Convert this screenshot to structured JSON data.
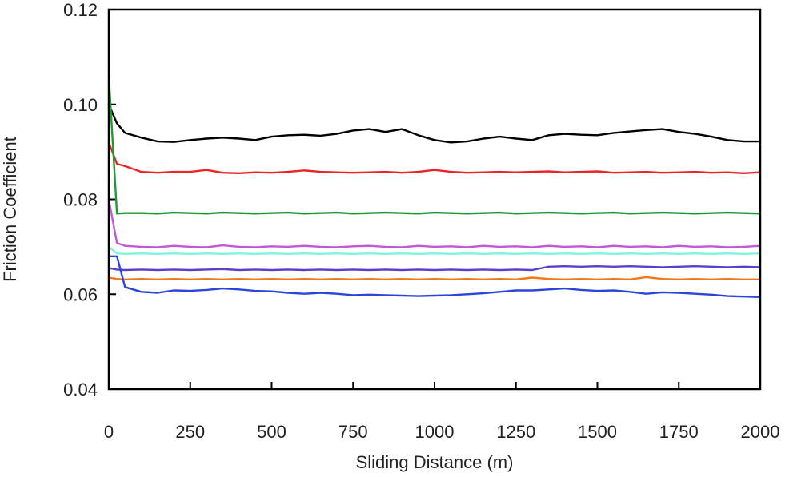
{
  "chart_data": {
    "type": "line",
    "title": "",
    "xlabel": "Sliding Distance (m)",
    "ylabel": "Friction Coefficient",
    "xlim": [
      0,
      2000
    ],
    "ylim": [
      0.04,
      0.12
    ],
    "x_ticks": [
      "0",
      "250",
      "500",
      "750",
      "1000",
      "1250",
      "1500",
      "1750",
      "2000"
    ],
    "y_ticks": [
      "0.04",
      "0.06",
      "0.08",
      "0.10",
      "0.12"
    ],
    "grid": false,
    "legend": "none",
    "x": [
      0,
      25,
      50,
      100,
      150,
      200,
      250,
      300,
      350,
      400,
      450,
      500,
      550,
      600,
      650,
      700,
      750,
      800,
      850,
      900,
      950,
      1000,
      1050,
      1100,
      1150,
      1200,
      1250,
      1300,
      1350,
      1400,
      1450,
      1500,
      1550,
      1600,
      1650,
      1700,
      1750,
      1800,
      1850,
      1900,
      1950,
      2000
    ],
    "series": [
      {
        "color": "#000000",
        "values": [
          0.1,
          0.096,
          0.094,
          0.093,
          0.0922,
          0.0921,
          0.0925,
          0.0928,
          0.093,
          0.0928,
          0.0925,
          0.0932,
          0.0935,
          0.0936,
          0.0934,
          0.0938,
          0.0945,
          0.0948,
          0.0942,
          0.0948,
          0.0935,
          0.0925,
          0.092,
          0.0922,
          0.0928,
          0.0932,
          0.0928,
          0.0925,
          0.0935,
          0.0938,
          0.0936,
          0.0935,
          0.094,
          0.0943,
          0.0946,
          0.0948,
          0.0942,
          0.0938,
          0.0932,
          0.0925,
          0.0922,
          0.0922
        ]
      },
      {
        "color": "#e8262a",
        "values": [
          0.092,
          0.0875,
          0.087,
          0.0858,
          0.0856,
          0.0858,
          0.0858,
          0.0862,
          0.0856,
          0.0855,
          0.0857,
          0.0856,
          0.0858,
          0.0861,
          0.0858,
          0.0857,
          0.0856,
          0.0857,
          0.0858,
          0.0856,
          0.0858,
          0.0862,
          0.0858,
          0.0856,
          0.0857,
          0.0858,
          0.0857,
          0.0858,
          0.0859,
          0.0857,
          0.0858,
          0.0859,
          0.0856,
          0.0857,
          0.0858,
          0.0856,
          0.0857,
          0.0858,
          0.0856,
          0.0857,
          0.0855,
          0.0857
        ]
      },
      {
        "color": "#1f9a33",
        "values": [
          0.106,
          0.077,
          0.0771,
          0.0771,
          0.077,
          0.0772,
          0.0771,
          0.077,
          0.0772,
          0.0771,
          0.077,
          0.0771,
          0.0772,
          0.077,
          0.0771,
          0.0772,
          0.077,
          0.0771,
          0.0772,
          0.0771,
          0.077,
          0.0772,
          0.0771,
          0.077,
          0.0771,
          0.0772,
          0.077,
          0.0771,
          0.0772,
          0.0771,
          0.077,
          0.0771,
          0.0772,
          0.077,
          0.0771,
          0.0772,
          0.0771,
          0.077,
          0.0771,
          0.0772,
          0.0771,
          0.077
        ]
      },
      {
        "color": "#c058d8",
        "values": [
          0.08,
          0.0708,
          0.0702,
          0.07,
          0.0699,
          0.0702,
          0.07,
          0.0699,
          0.0703,
          0.07,
          0.0699,
          0.0701,
          0.07,
          0.0702,
          0.07,
          0.0699,
          0.0701,
          0.0702,
          0.07,
          0.0699,
          0.0702,
          0.07,
          0.0701,
          0.0699,
          0.0702,
          0.07,
          0.0701,
          0.0699,
          0.0702,
          0.07,
          0.0701,
          0.0699,
          0.0702,
          0.07,
          0.0701,
          0.0699,
          0.0702,
          0.07,
          0.0701,
          0.0699,
          0.07,
          0.0702
        ]
      },
      {
        "color": "#7ff3e0",
        "values": [
          0.07,
          0.0686,
          0.0685,
          0.0686,
          0.0685,
          0.0686,
          0.0685,
          0.0686,
          0.0685,
          0.0686,
          0.0685,
          0.0686,
          0.0685,
          0.0686,
          0.0685,
          0.0686,
          0.0685,
          0.0686,
          0.0685,
          0.0686,
          0.0685,
          0.0686,
          0.0685,
          0.0686,
          0.0685,
          0.0686,
          0.0685,
          0.0686,
          0.0685,
          0.0686,
          0.0685,
          0.0686,
          0.0685,
          0.0686,
          0.0685,
          0.0686,
          0.0685,
          0.0686,
          0.0685,
          0.0686,
          0.0685,
          0.0686
        ]
      },
      {
        "color": "#5a3fc8",
        "values": [
          0.0655,
          0.0652,
          0.0651,
          0.0652,
          0.0651,
          0.0652,
          0.0651,
          0.0652,
          0.0653,
          0.0651,
          0.0652,
          0.0651,
          0.0652,
          0.0651,
          0.0652,
          0.0651,
          0.0652,
          0.0651,
          0.0652,
          0.0651,
          0.0652,
          0.0651,
          0.0652,
          0.0651,
          0.0652,
          0.0651,
          0.0652,
          0.0651,
          0.0658,
          0.0659,
          0.0658,
          0.0659,
          0.0658,
          0.0659,
          0.0658,
          0.0657,
          0.0658,
          0.0659,
          0.0658,
          0.0657,
          0.0658,
          0.0657
        ]
      },
      {
        "color": "#f07818",
        "values": [
          0.0635,
          0.0632,
          0.0631,
          0.0632,
          0.0631,
          0.0632,
          0.0631,
          0.0632,
          0.0631,
          0.0632,
          0.0631,
          0.0632,
          0.0631,
          0.0632,
          0.0631,
          0.0632,
          0.0631,
          0.0632,
          0.0631,
          0.0632,
          0.0631,
          0.0632,
          0.0631,
          0.0632,
          0.0631,
          0.0632,
          0.0631,
          0.0635,
          0.0632,
          0.0631,
          0.0632,
          0.0631,
          0.0632,
          0.0631,
          0.0636,
          0.0632,
          0.0631,
          0.0632,
          0.0631,
          0.0632,
          0.0631,
          0.0631
        ]
      },
      {
        "color": "#2a46d8",
        "values": [
          0.068,
          0.068,
          0.0615,
          0.0605,
          0.0603,
          0.0608,
          0.0607,
          0.0609,
          0.0612,
          0.061,
          0.0607,
          0.0606,
          0.0603,
          0.0601,
          0.0603,
          0.0601,
          0.0598,
          0.0599,
          0.0598,
          0.0597,
          0.0596,
          0.0597,
          0.0598,
          0.06,
          0.0602,
          0.0605,
          0.0608,
          0.0608,
          0.061,
          0.0612,
          0.0609,
          0.0607,
          0.0608,
          0.0605,
          0.0601,
          0.0604,
          0.0603,
          0.0601,
          0.0599,
          0.0596,
          0.0595,
          0.0594
        ]
      }
    ]
  }
}
